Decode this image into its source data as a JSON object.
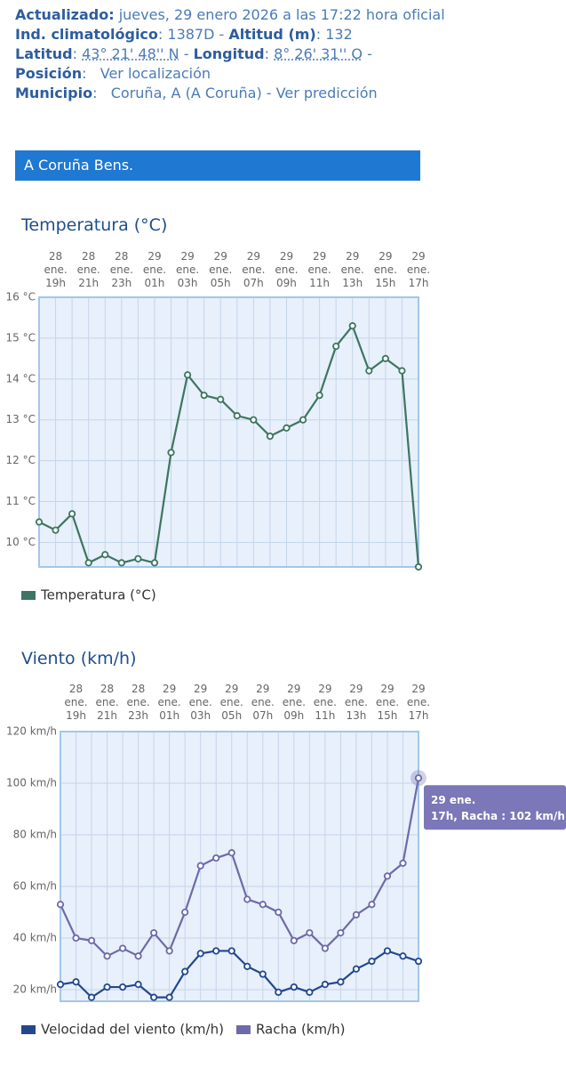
{
  "header": {
    "lines": [
      [
        {
          "text": "Actualizado:",
          "style": "label"
        },
        {
          "text": " jueves, 29 enero 2026 a las 17:22 hora oficial",
          "style": "value"
        }
      ],
      [
        {
          "text": "Ind. climatológico",
          "style": "label"
        },
        {
          "text": ": 1387D - ",
          "style": "value"
        },
        {
          "text": "Altitud (m)",
          "style": "label"
        },
        {
          "text": ": 132",
          "style": "value"
        }
      ],
      [
        {
          "text": "Latitud",
          "style": "label"
        },
        {
          "text": ": ",
          "style": "value"
        },
        {
          "text": "43° 21' 48'' N",
          "style": "abbr"
        },
        {
          "text": " - ",
          "style": "value"
        },
        {
          "text": "Longitud",
          "style": "label"
        },
        {
          "text": ": ",
          "style": "value"
        },
        {
          "text": "8° 26' 31'' O",
          "style": "abbr"
        },
        {
          "text": " -",
          "style": "value"
        }
      ],
      [
        {
          "text": "Posición",
          "style": "label"
        },
        {
          "text": ":   ",
          "style": "value"
        },
        {
          "text": "Ver localización",
          "style": "link"
        }
      ],
      [
        {
          "text": "Municipio",
          "style": "label"
        },
        {
          "text": ":   ",
          "style": "value"
        },
        {
          "text": "Coruña, A (A Coruña)",
          "style": "value"
        },
        {
          "text": " - ",
          "style": "value"
        },
        {
          "text": "Ver predicción",
          "style": "link"
        }
      ]
    ],
    "station": "A Coruña Bens."
  },
  "chart_data": [
    {
      "type": "line",
      "title": "Temperatura (°C)",
      "categories": [
        null,
        "28 ene. 19h",
        null,
        "28 ene. 21h",
        null,
        "28 ene. 23h",
        null,
        "29 ene. 01h",
        null,
        "29 ene. 03h",
        null,
        "29 ene. 05h",
        null,
        "29 ene. 07h",
        null,
        "29 ene. 09h",
        null,
        "29 ene. 11h",
        null,
        "29 ene. 13h",
        null,
        "29 ene. 15h",
        null,
        "29 ene. 17h"
      ],
      "series": [
        {
          "name": "Temperatura (°C)",
          "color": "#3e7560",
          "values": [
            10.5,
            10.3,
            10.7,
            9.5,
            9.7,
            9.5,
            9.6,
            9.5,
            12.2,
            14.1,
            13.6,
            13.5,
            13.1,
            13.0,
            12.6,
            12.8,
            13.0,
            13.6,
            14.8,
            15.3,
            14.2,
            14.5,
            14.2,
            9.4
          ]
        }
      ],
      "ylim": [
        9.4,
        16
      ],
      "yticks": [
        {
          "value": 10,
          "label": "10 °C"
        },
        {
          "value": 11,
          "label": "11 °C"
        },
        {
          "value": 12,
          "label": "12 °C"
        },
        {
          "value": 13,
          "label": "13 °C"
        },
        {
          "value": 14,
          "label": "14 °C"
        },
        {
          "value": 15,
          "label": "15 °C"
        },
        {
          "value": 16,
          "label": "16 °C"
        }
      ],
      "grid": true
    },
    {
      "type": "line",
      "title": "Viento (km/h)",
      "categories": [
        null,
        "28 ene. 19h",
        null,
        "28 ene. 21h",
        null,
        "28 ene. 23h",
        null,
        "29 ene. 01h",
        null,
        "29 ene. 03h",
        null,
        "29 ene. 05h",
        null,
        "29 ene. 07h",
        null,
        "29 ene. 09h",
        null,
        "29 ene. 11h",
        null,
        "29 ene. 13h",
        null,
        "29 ene. 15h",
        null,
        "29 ene. 17h"
      ],
      "series": [
        {
          "name": "Velocidad del viento (km/h)",
          "color": "#23478f",
          "values": [
            22,
            23,
            17,
            21,
            21,
            22,
            17,
            17,
            27,
            34,
            35,
            35,
            29,
            26,
            19,
            21,
            19,
            22,
            23,
            28,
            31,
            35,
            33,
            31
          ]
        },
        {
          "name": "Racha (km/h)",
          "color": "#6e6aa8",
          "values": [
            53,
            40,
            39,
            33,
            36,
            33,
            42,
            35,
            50,
            68,
            71,
            73,
            55,
            53,
            50,
            39,
            42,
            36,
            42,
            49,
            53,
            64,
            69,
            102
          ]
        }
      ],
      "ylim": [
        15.5,
        120
      ],
      "yticks": [
        {
          "value": 20,
          "label": "20 km/h"
        },
        {
          "value": 40,
          "label": "40 km/h"
        },
        {
          "value": 60,
          "label": "60 km/h"
        },
        {
          "value": 80,
          "label": "80 km/h"
        },
        {
          "value": 100,
          "label": "100 km/h"
        },
        {
          "value": 120,
          "label": "120 km/h"
        }
      ],
      "grid": true,
      "tooltip": {
        "series": 1,
        "index": 23,
        "lines": [
          "29 ene.",
          "17h, Racha : 102 km/h"
        ],
        "color": "#7b77b8"
      }
    }
  ]
}
